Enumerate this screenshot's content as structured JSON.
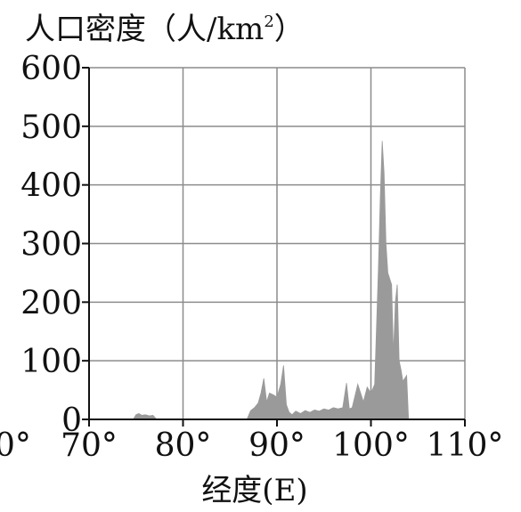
{
  "chart_data": {
    "type": "area",
    "title": "",
    "ylabel": "人口密度（人/km²）",
    "ylabel_parts": {
      "main": "人口密度（人/km",
      "sup": "2",
      "end": "）"
    },
    "xlabel": "经度(E)",
    "xlim": [
      70,
      110
    ],
    "ylim": [
      0,
      600
    ],
    "xticks": [
      70,
      80,
      90,
      100,
      110
    ],
    "xtick_labels": [
      "70°",
      "80°",
      "90°",
      "100°",
      "110°"
    ],
    "partial_left_tick_label": "0°",
    "yticks": [
      0,
      100,
      200,
      300,
      400,
      500,
      600
    ],
    "ytick_labels": [
      "0",
      "100",
      "200",
      "300",
      "400",
      "500",
      "600"
    ],
    "grid": true,
    "series": [
      {
        "color": "#9a9a9a",
        "segments": [
          {
            "x": [
              74.7,
              75.0,
              75.3,
              75.6,
              76.0,
              76.4,
              76.8,
              77.2
            ],
            "y": [
              0,
              8,
              10,
              7,
              8,
              6,
              7,
              0
            ]
          },
          {
            "x": [
              86.8,
              87.2,
              87.6,
              88.0,
              88.3,
              88.6,
              88.9,
              89.2,
              89.6,
              90.0,
              90.4,
              90.7,
              91.0,
              91.3,
              91.6,
              92.0,
              92.5,
              93.0,
              93.5,
              94.0,
              94.5,
              95.0,
              95.5,
              96.0,
              96.5,
              97.0,
              97.4,
              97.7,
              98.0,
              98.3,
              98.6,
              98.9,
              99.2,
              99.6,
              100.0,
              100.4,
              100.8,
              101.0,
              101.2,
              101.4,
              101.6,
              101.8,
              102.0,
              102.2,
              102.4,
              102.6,
              102.8,
              103.0,
              103.2,
              103.4,
              103.6,
              103.8,
              104.0
            ],
            "y": [
              0,
              15,
              20,
              28,
              45,
              70,
              30,
              45,
              42,
              38,
              60,
              92,
              25,
              12,
              8,
              14,
              10,
              15,
              12,
              16,
              14,
              18,
              16,
              20,
              18,
              20,
              62,
              18,
              20,
              40,
              60,
              45,
              30,
              55,
              45,
              60,
              260,
              380,
              475,
              420,
              300,
              250,
              240,
              230,
              110,
              200,
              230,
              100,
              85,
              65,
              70,
              75,
              0
            ]
          }
        ]
      }
    ]
  }
}
